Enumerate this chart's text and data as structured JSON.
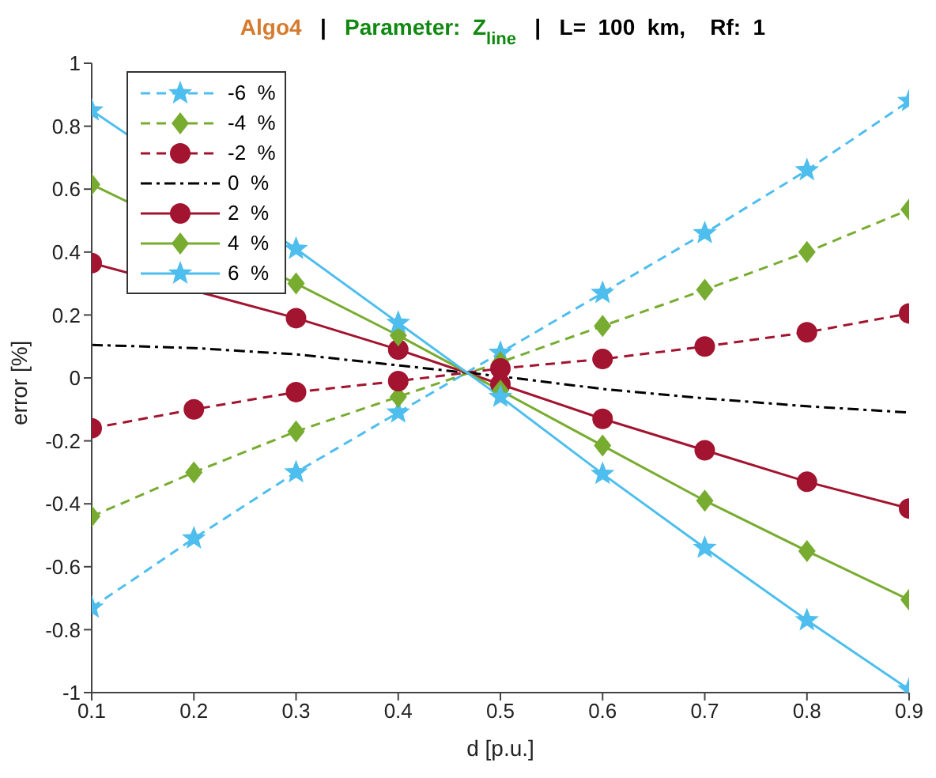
{
  "chart_data": {
    "type": "line",
    "title": "Algo4   |   Parameter:  Z$_{line}$   |   L=  100  km,    Rf:  1",
    "xlabel": "d [p.u.]",
    "ylabel": "error [%]",
    "x": [
      0.1,
      0.2,
      0.3,
      0.4,
      0.5,
      0.6,
      0.7,
      0.8,
      0.9
    ],
    "xlim": [
      0.1,
      0.9
    ],
    "xticks": [
      0.1,
      0.2,
      0.3,
      0.4,
      0.5,
      0.6,
      0.7,
      0.8,
      0.9
    ],
    "ylim": [
      -1,
      1
    ],
    "yticks": [
      -1,
      -0.8,
      -0.6,
      -0.4,
      -0.2,
      0,
      0.2,
      0.4,
      0.6,
      0.8,
      1
    ],
    "grid": false,
    "legend": "top left",
    "series": [
      {
        "name": "-6  %",
        "color": "#4dbeee",
        "marker": "star",
        "line_style": "dashed",
        "values": [
          -0.73,
          -0.51,
          -0.3,
          -0.11,
          0.08,
          0.27,
          0.46,
          0.66,
          0.88
        ]
      },
      {
        "name": "-4  %",
        "color": "#77ac30",
        "marker": "diamond",
        "line_style": "dashed",
        "values": [
          -0.44,
          -0.3,
          -0.17,
          -0.06,
          0.05,
          0.165,
          0.28,
          0.4,
          0.535
        ]
      },
      {
        "name": "-2  %",
        "color": "#a2142f",
        "marker": "circle",
        "line_style": "dashed",
        "values": [
          -0.16,
          -0.1,
          -0.045,
          -0.01,
          0.03,
          0.06,
          0.1,
          0.145,
          0.205
        ]
      },
      {
        "name": "0  %",
        "color": "#000000",
        "marker": "none",
        "line_style": "dotted",
        "values": [
          0.105,
          0.095,
          0.075,
          0.04,
          0.005,
          -0.035,
          -0.065,
          -0.09,
          -0.11
        ]
      },
      {
        "name": "2  %",
        "color": "#a2142f",
        "marker": "circle",
        "line_style": "solid",
        "values": [
          0.365,
          null,
          0.19,
          0.09,
          -0.02,
          -0.13,
          -0.23,
          -0.33,
          -0.415
        ]
      },
      {
        "name": "4  %",
        "color": "#77ac30",
        "marker": "diamond",
        "line_style": "solid",
        "values": [
          0.615,
          null,
          0.3,
          0.135,
          -0.04,
          -0.215,
          -0.39,
          -0.55,
          -0.705
        ]
      },
      {
        "name": "6  %",
        "color": "#4dbeee",
        "marker": "star",
        "line_style": "solid",
        "values": [
          0.85,
          null,
          0.41,
          0.175,
          -0.06,
          -0.305,
          -0.54,
          -0.77,
          -0.99
        ]
      }
    ]
  }
}
